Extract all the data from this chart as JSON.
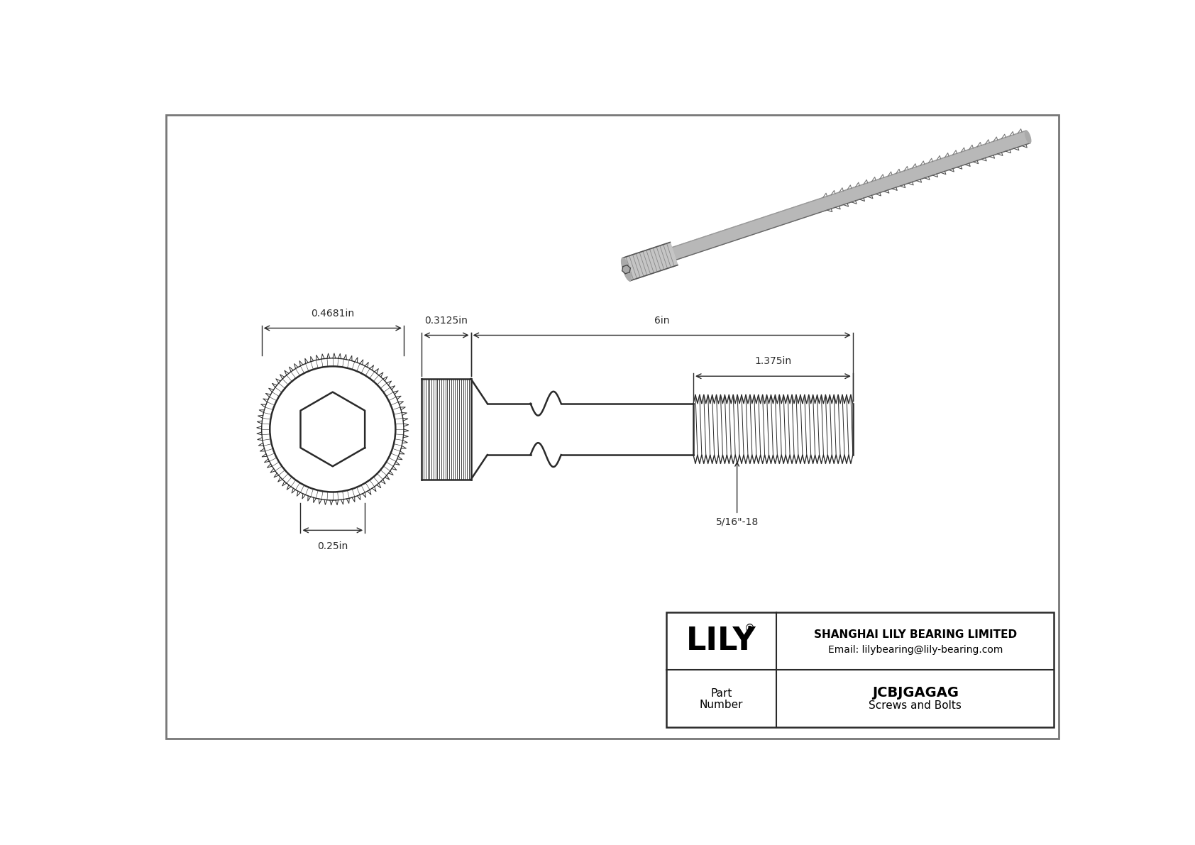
{
  "bg_color": "#ffffff",
  "line_color": "#2a2a2a",
  "dim_color": "#2a2a2a",
  "title_company": "SHANGHAI LILY BEARING LIMITED",
  "title_email": "Email: lilybearing@lily-bearing.com",
  "part_number": "JCBJGAGAG",
  "part_category": "Screws and Bolts",
  "dim_head_diameter": "0.4681in",
  "dim_head_length": "0.3125in",
  "dim_total_length": "6in",
  "dim_thread_length": "1.375in",
  "dim_socket": "0.25in",
  "dim_thread_spec": "5/16\"-18",
  "note_font": 10,
  "dim_font": 10
}
